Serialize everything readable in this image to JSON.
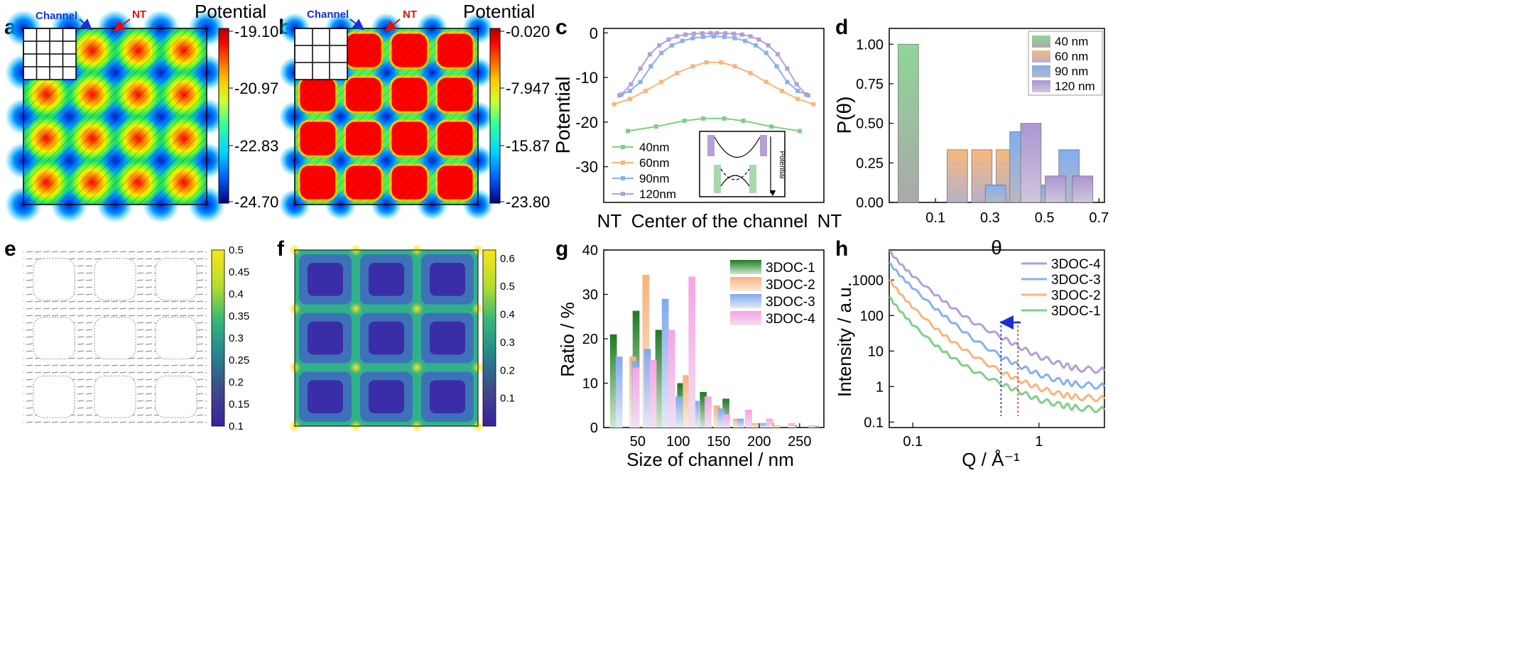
{
  "colors": {
    "green": "#7fcf86",
    "orange": "#f7b57d",
    "blue": "#86b1ef",
    "purple": "#b49fd6",
    "pink": "#f7a4e3",
    "darkgreen": "#2e8b2e",
    "jet_low": "#0000b0",
    "jet_high": "#ff0000",
    "viridis_low": "#3b1fa0",
    "viridis_high": "#f8e41a"
  },
  "panels": {
    "a": {
      "letter": "a",
      "channel_label": "Channel",
      "nt_label": "NT",
      "colorbar_title": "Potential",
      "colorbar_ticks": [
        "-19.10",
        "-20.97",
        "-22.83",
        "-24.70"
      ]
    },
    "b": {
      "letter": "b",
      "channel_label": "Channel",
      "nt_label": "NT",
      "colorbar_title": "Potential",
      "colorbar_ticks": [
        "-0.020",
        "-7.947",
        "-15.87",
        "-23.80"
      ]
    },
    "c": {
      "letter": "c"
    },
    "d": {
      "letter": "d"
    },
    "e": {
      "letter": "e",
      "colorbar_ticks": [
        "0.5",
        "0.45",
        "0.4",
        "0.35",
        "0.3",
        "0.25",
        "0.2",
        "0.15",
        "0.1"
      ]
    },
    "f": {
      "letter": "f",
      "colorbar_ticks": [
        "0.6",
        "0.5",
        "0.4",
        "0.3",
        "0.2",
        "0.1"
      ]
    },
    "g": {
      "letter": "g"
    },
    "h": {
      "letter": "h"
    }
  },
  "inset_c": {
    "label": "Potential"
  },
  "chart_data": [
    {
      "panel": "c",
      "type": "line",
      "ylabel": "Potential",
      "x_tick_labels": [
        "NT",
        "Center of the channel",
        "NT"
      ],
      "ylim": [
        -38,
        1
      ],
      "yticks": [
        0,
        -10,
        -20,
        -30
      ],
      "legend_position": "lower-left",
      "series": [
        {
          "name": "40nm",
          "color_key": "green",
          "x": [
            -0.82,
            -0.55,
            -0.28,
            -0.1,
            0.1,
            0.28,
            0.55,
            0.82
          ],
          "y": [
            -22,
            -21,
            -19.7,
            -19.2,
            -19.2,
            -19.7,
            -21,
            -22
          ]
        },
        {
          "name": "60nm",
          "color_key": "orange",
          "x": [
            -0.95,
            -0.8,
            -0.65,
            -0.5,
            -0.35,
            -0.2,
            -0.07,
            0.07,
            0.2,
            0.35,
            0.5,
            0.65,
            0.8,
            0.95
          ],
          "y": [
            -16,
            -14.8,
            -13,
            -11,
            -9,
            -7.5,
            -6.6,
            -6.6,
            -7.5,
            -9,
            -11,
            -13,
            -14.8,
            -16
          ]
        },
        {
          "name": "90nm",
          "color_key": "blue",
          "x": [
            -0.9,
            -0.8,
            -0.7,
            -0.6,
            -0.5,
            -0.4,
            -0.3,
            -0.2,
            -0.1,
            0,
            0.1,
            0.2,
            0.3,
            0.4,
            0.5,
            0.6,
            0.7,
            0.8,
            0.9
          ],
          "y": [
            -14,
            -13,
            -11,
            -7.5,
            -4.5,
            -2.8,
            -1.8,
            -1.2,
            -0.9,
            -0.8,
            -0.9,
            -1.2,
            -1.8,
            -2.8,
            -4.5,
            -7.5,
            -11,
            -13,
            -14
          ]
        },
        {
          "name": "120nm",
          "color_key": "purple",
          "x": [
            -0.88,
            -0.79,
            -0.7,
            -0.61,
            -0.52,
            -0.43,
            -0.35,
            -0.27,
            -0.19,
            -0.11,
            -0.03,
            0.03,
            0.11,
            0.19,
            0.27,
            0.35,
            0.43,
            0.52,
            0.61,
            0.7,
            0.79,
            0.88
          ],
          "y": [
            -13.8,
            -11.5,
            -8,
            -4.8,
            -2.8,
            -1.5,
            -0.8,
            -0.4,
            -0.2,
            -0.1,
            -0.05,
            -0.05,
            -0.1,
            -0.2,
            -0.4,
            -0.8,
            -1.5,
            -2.8,
            -4.8,
            -8,
            -11.5,
            -13.8
          ]
        }
      ]
    },
    {
      "panel": "d",
      "type": "bar",
      "xlabel": "θ",
      "ylabel": "P(θ)",
      "xlim": [
        -0.07,
        0.72
      ],
      "ylim": [
        0,
        1.1
      ],
      "xticks": [
        0.1,
        0.3,
        0.5,
        0.7
      ],
      "yticks": [
        0.0,
        0.25,
        0.5,
        0.75,
        1.0
      ],
      "legend_position": "top-right",
      "series": [
        {
          "name": "40 nm",
          "color_key": "green",
          "x": [
            0.0
          ],
          "values": [
            1.0
          ]
        },
        {
          "name": "60 nm",
          "color_key": "orange",
          "x": [
            0.18,
            0.27,
            0.36
          ],
          "values": [
            0.333,
            0.333,
            0.333
          ]
        },
        {
          "name": "90 nm",
          "color_key": "blue",
          "x": [
            0.32,
            0.41,
            0.5,
            0.59
          ],
          "values": [
            0.11,
            0.447,
            0.11,
            0.333
          ]
        },
        {
          "name": "120 nm",
          "color_key": "purple",
          "x": [
            0.45,
            0.54,
            0.64
          ],
          "values": [
            0.5,
            0.167,
            0.167
          ]
        }
      ]
    },
    {
      "panel": "g",
      "type": "bar",
      "xlabel": "Size of channel / nm",
      "ylabel": "Ratio / %",
      "xlim": [
        8,
        280
      ],
      "ylim": [
        0,
        40
      ],
      "xticks": [
        50,
        100,
        150,
        200,
        250
      ],
      "yticks": [
        0,
        10,
        20,
        30,
        40
      ],
      "legend_position": "top-right",
      "series": [
        {
          "name": "3DOC-1",
          "color_key": "darkgreen",
          "x": [
            20,
            48,
            76,
            103,
            131,
            159,
            187,
            214,
            242,
            270
          ],
          "values": [
            21,
            26.3,
            22,
            10,
            8,
            6.5,
            2,
            1,
            0.5,
            0.3
          ]
        },
        {
          "name": "3DOC-2",
          "color_key": "orange",
          "x": [
            44,
            60,
            90,
            110,
            148,
            172,
            195,
            222
          ],
          "values": [
            16,
            34.4,
            21,
            11.8,
            5,
            2,
            1,
            0.5
          ]
        },
        {
          "name": "3DOC-3",
          "color_key": "blue",
          "x": [
            27,
            47,
            62,
            84,
            101,
            122,
            153,
            177,
            205,
            240
          ],
          "values": [
            16,
            15,
            17.7,
            29,
            7,
            6,
            4.3,
            2,
            1,
            0.5
          ]
        },
        {
          "name": "3DOC-4",
          "color_key": "pink",
          "x": [
            48,
            69,
            92,
            117,
            137,
            160,
            187,
            213,
            240,
            265
          ],
          "values": [
            13.5,
            15.2,
            22,
            34,
            7,
            3,
            4,
            2,
            1,
            0.5
          ]
        }
      ]
    },
    {
      "panel": "h",
      "type": "line",
      "xlabel": "Q / Å⁻¹",
      "ylabel": "Intensity / a.u.",
      "x_scale": "log",
      "y_scale": "log",
      "xlim": [
        0.065,
        3.3
      ],
      "ylim": [
        0.07,
        7000
      ],
      "xticks": [
        0.1,
        1
      ],
      "yticks": [
        0.1,
        1,
        10,
        100,
        1000
      ],
      "legend_position": "top-right",
      "reference_lines_x": [
        0.5,
        0.68
      ],
      "series": [
        {
          "name": "3DOC-4",
          "color_key": "purple",
          "x": [
            0.065,
            0.08,
            0.1,
            0.15,
            0.2,
            0.3,
            0.5,
            0.7,
            1.0,
            1.5,
            2.0,
            3.3
          ],
          "y": [
            6500,
            2800,
            1300,
            400,
            180,
            65,
            25,
            13,
            7,
            4.2,
            3.2,
            2.8
          ]
        },
        {
          "name": "3DOC-3",
          "color_key": "blue",
          "x": [
            0.065,
            0.08,
            0.1,
            0.15,
            0.2,
            0.3,
            0.5,
            0.7,
            1.0,
            1.5,
            2.0,
            3.3
          ],
          "y": [
            3000,
            1300,
            600,
            160,
            70,
            22,
            7,
            3.8,
            2.2,
            1.4,
            1.15,
            1.0
          ]
        },
        {
          "name": "3DOC-2",
          "color_key": "orange",
          "x": [
            0.065,
            0.08,
            0.1,
            0.15,
            0.2,
            0.3,
            0.5,
            0.7,
            1.0,
            1.5,
            2.0,
            3.3
          ],
          "y": [
            1000,
            400,
            170,
            45,
            20,
            7.5,
            2.6,
            1.5,
            0.9,
            0.6,
            0.5,
            0.45
          ]
        },
        {
          "name": "3DOC-1",
          "color_key": "green",
          "x": [
            0.065,
            0.08,
            0.1,
            0.15,
            0.2,
            0.3,
            0.5,
            0.7,
            1.0,
            1.5,
            2.0,
            3.3
          ],
          "y": [
            330,
            130,
            55,
            15,
            7,
            2.8,
            1.2,
            0.72,
            0.42,
            0.3,
            0.25,
            0.22
          ]
        }
      ]
    }
  ]
}
